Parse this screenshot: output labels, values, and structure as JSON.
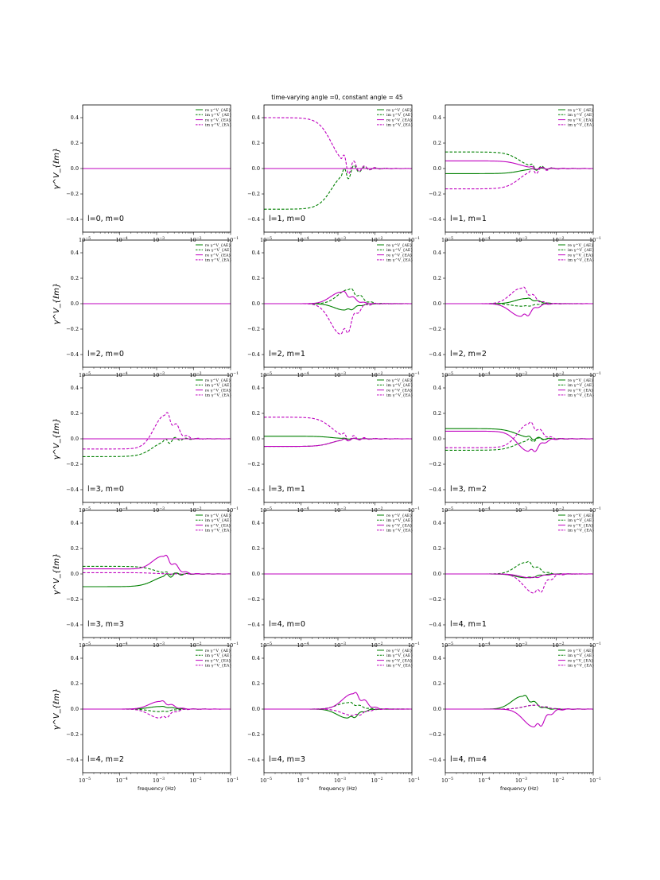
{
  "figure": {
    "suptitle": "time-varying angle =0, constant angle = 45",
    "xlabel": "frequency (Hz)",
    "ylabel": "γ^V_{ℓm}"
  },
  "colors": {
    "green": "#008000",
    "magenta": "#bf00bf"
  },
  "legend": [
    {
      "text": "re γ^V_{AE}",
      "color": "green",
      "dash": false
    },
    {
      "text": "im γ^V_{AE}",
      "color": "green",
      "dash": true
    },
    {
      "text": "re γ^V_{EA}",
      "color": "magenta",
      "dash": false
    },
    {
      "text": "im γ^V_{EA}",
      "color": "magenta",
      "dash": true
    }
  ],
  "chart_data": {
    "type": "line",
    "layout": "5x3 grid of subplots",
    "x_scale": "log",
    "xlim": [
      1e-05,
      0.1
    ],
    "ylim": [
      -0.5,
      0.5
    ],
    "x_ticks": [
      "10^-5",
      "10^-4",
      "10^-3",
      "10^-2",
      "10^-1"
    ],
    "y_ticks": [
      "−0.4",
      "−0.2",
      "0.0",
      "0.2",
      "0.4"
    ],
    "series_names": [
      "re γ^V_{AE}",
      "im γ^V_{AE}",
      "re γ^V_{EA}",
      "im γ^V_{EA}"
    ],
    "panels": [
      {
        "label": "l=0, m=0",
        "series": [
          {
            "name": "re γ^V_{AE}",
            "amp": 0,
            "peak_freq": null
          },
          {
            "name": "im γ^V_{AE}",
            "amp": 0,
            "peak_freq": null
          },
          {
            "name": "re γ^V_{EA}",
            "amp": 0,
            "peak_freq": null
          },
          {
            "name": "im γ^V_{EA}",
            "amp": 0,
            "peak_freq": null
          }
        ]
      },
      {
        "label": "l=1, m=0",
        "series": [
          {
            "name": "re γ^V_{AE}",
            "amp": 0,
            "peak_freq": null
          },
          {
            "name": "im γ^V_{AE}",
            "low_freq_value": -0.32,
            "transition_freq": 0.0012
          },
          {
            "name": "re γ^V_{EA}",
            "amp": 0,
            "peak_freq": null
          },
          {
            "name": "im γ^V_{EA}",
            "low_freq_value": 0.4,
            "transition_freq": 0.0012
          }
        ]
      },
      {
        "label": "l=1, m=1",
        "series": [
          {
            "name": "re γ^V_{AE}",
            "low_freq_value": -0.04,
            "transition_freq": 0.0018
          },
          {
            "name": "im γ^V_{AE}",
            "low_freq_value": 0.13,
            "transition_freq": 0.0018
          },
          {
            "name": "re γ^V_{EA}",
            "low_freq_value": 0.06,
            "transition_freq": 0.0018
          },
          {
            "name": "im γ^V_{EA}",
            "low_freq_value": -0.16,
            "transition_freq": 0.0018
          }
        ]
      },
      {
        "label": "l=2, m=0",
        "series": [
          {
            "name": "re γ^V_{AE}",
            "amp": 0,
            "peak_freq": null
          },
          {
            "name": "im γ^V_{AE}",
            "amp": 0,
            "peak_freq": null
          },
          {
            "name": "re γ^V_{EA}",
            "amp": 0,
            "peak_freq": null
          },
          {
            "name": "im γ^V_{EA}",
            "amp": 0,
            "peak_freq": null
          }
        ]
      },
      {
        "label": "l=2, m=1",
        "series": [
          {
            "name": "re γ^V_{AE}",
            "peak_value": -0.05,
            "peak_freq": 0.0015
          },
          {
            "name": "im γ^V_{AE}",
            "peak_value": 0.11,
            "peak_freq": 0.0019
          },
          {
            "name": "re γ^V_{EA}",
            "peak_value": 0.09,
            "peak_freq": 0.0012
          },
          {
            "name": "im γ^V_{EA}",
            "peak_value": -0.24,
            "peak_freq": 0.0012
          }
        ]
      },
      {
        "label": "l=2, m=2",
        "series": [
          {
            "name": "re γ^V_{AE}",
            "peak_value": 0.04,
            "peak_freq": 0.0015
          },
          {
            "name": "im γ^V_{AE}",
            "peak_value": -0.02,
            "peak_freq": 0.0012
          },
          {
            "name": "re γ^V_{EA}",
            "peak_value": -0.1,
            "peak_freq": 0.0011
          },
          {
            "name": "im γ^V_{EA}",
            "peak_value": 0.12,
            "peak_freq": 0.0011
          }
        ]
      },
      {
        "label": "l=3, m=0",
        "series": [
          {
            "name": "re γ^V_{AE}",
            "amp": 0,
            "peak_freq": null
          },
          {
            "name": "im γ^V_{AE}",
            "low_freq_value": -0.14,
            "transition_freq": 0.0014
          },
          {
            "name": "re γ^V_{EA}",
            "amp": 0,
            "peak_freq": null
          },
          {
            "name": "im γ^V_{EA}",
            "low_freq_value": -0.08,
            "peak_value": 0.2,
            "peak_freq": 0.0016
          }
        ]
      },
      {
        "label": "l=3, m=1",
        "series": [
          {
            "name": "re γ^V_{AE}",
            "low_freq_value": 0.02,
            "transition_freq": 0.0012
          },
          {
            "name": "im γ^V_{AE}",
            "low_freq_value": -0.06,
            "transition_freq": 0.0012
          },
          {
            "name": "re γ^V_{EA}",
            "low_freq_value": -0.06,
            "transition_freq": 0.0012
          },
          {
            "name": "im γ^V_{EA}",
            "low_freq_value": 0.17,
            "transition_freq": 0.0012
          }
        ]
      },
      {
        "label": "l=3, m=2",
        "series": [
          {
            "name": "re γ^V_{AE}",
            "low_freq_value": 0.08,
            "transition_freq": 0.0015
          },
          {
            "name": "im γ^V_{AE}",
            "low_freq_value": -0.09,
            "transition_freq": 0.0015
          },
          {
            "name": "re γ^V_{EA}",
            "low_freq_value": 0.06,
            "peak_value": -0.11,
            "peak_freq": 0.0017
          },
          {
            "name": "im γ^V_{EA}",
            "low_freq_value": -0.07,
            "peak_value": 0.13,
            "peak_freq": 0.0017
          }
        ]
      },
      {
        "label": "l=3, m=3",
        "series": [
          {
            "name": "re γ^V_{AE}",
            "low_freq_value": -0.1,
            "transition_freq": 0.0015
          },
          {
            "name": "im γ^V_{AE}",
            "low_freq_value": 0.06,
            "transition_freq": 0.0015
          },
          {
            "name": "re γ^V_{EA}",
            "low_freq_value": 0.04,
            "peak_value": 0.13,
            "peak_freq": 0.0015
          },
          {
            "name": "im γ^V_{EA}",
            "low_freq_value": 0.01,
            "transition_freq": 0.0015
          }
        ]
      },
      {
        "label": "l=4, m=0",
        "series": [
          {
            "name": "re γ^V_{AE}",
            "amp": 0,
            "peak_freq": null
          },
          {
            "name": "im γ^V_{AE}",
            "amp": 0,
            "peak_freq": null
          },
          {
            "name": "re γ^V_{EA}",
            "amp": 0,
            "peak_freq": null
          },
          {
            "name": "im γ^V_{EA}",
            "amp": 0,
            "peak_freq": null
          }
        ]
      },
      {
        "label": "l=4, m=1",
        "series": [
          {
            "name": "re γ^V_{AE}",
            "peak_value": -0.03,
            "peak_freq": 0.0015
          },
          {
            "name": "im γ^V_{AE}",
            "peak_value": 0.09,
            "peak_freq": 0.0015
          },
          {
            "name": "re γ^V_{EA}",
            "peak_value": -0.03,
            "peak_freq": 0.002
          },
          {
            "name": "im γ^V_{EA}",
            "peak_value": -0.15,
            "peak_freq": 0.0025
          }
        ]
      },
      {
        "label": "l=4, m=2",
        "series": [
          {
            "name": "re γ^V_{AE}",
            "peak_value": 0.02,
            "peak_freq": 0.0012
          },
          {
            "name": "im γ^V_{AE}",
            "peak_value": -0.02,
            "peak_freq": 0.0012
          },
          {
            "name": "re γ^V_{EA}",
            "peak_value": 0.06,
            "peak_freq": 0.0012
          },
          {
            "name": "im γ^V_{EA}",
            "peak_value": -0.07,
            "peak_freq": 0.0012
          }
        ]
      },
      {
        "label": "l=4, m=3",
        "series": [
          {
            "name": "re γ^V_{AE}",
            "peak_value": -0.07,
            "peak_freq": 0.0018
          },
          {
            "name": "im γ^V_{AE}",
            "peak_value": 0.05,
            "peak_freq": 0.0018
          },
          {
            "name": "re γ^V_{EA}",
            "peak_value": 0.12,
            "peak_freq": 0.0025
          },
          {
            "name": "im γ^V_{EA}",
            "peak_value": -0.05,
            "peak_freq": 0.0025
          }
        ]
      },
      {
        "label": "l=4, m=4",
        "series": [
          {
            "name": "re γ^V_{AE}",
            "peak_value": 0.1,
            "peak_freq": 0.0012
          },
          {
            "name": "im γ^V_{AE}",
            "peak_value": 0.03,
            "peak_freq": 0.0025
          },
          {
            "name": "re γ^V_{EA}",
            "peak_value": -0.14,
            "peak_freq": 0.0025
          },
          {
            "name": "im γ^V_{EA}",
            "peak_value": 0.03,
            "peak_freq": 0.0025
          }
        ]
      }
    ]
  }
}
